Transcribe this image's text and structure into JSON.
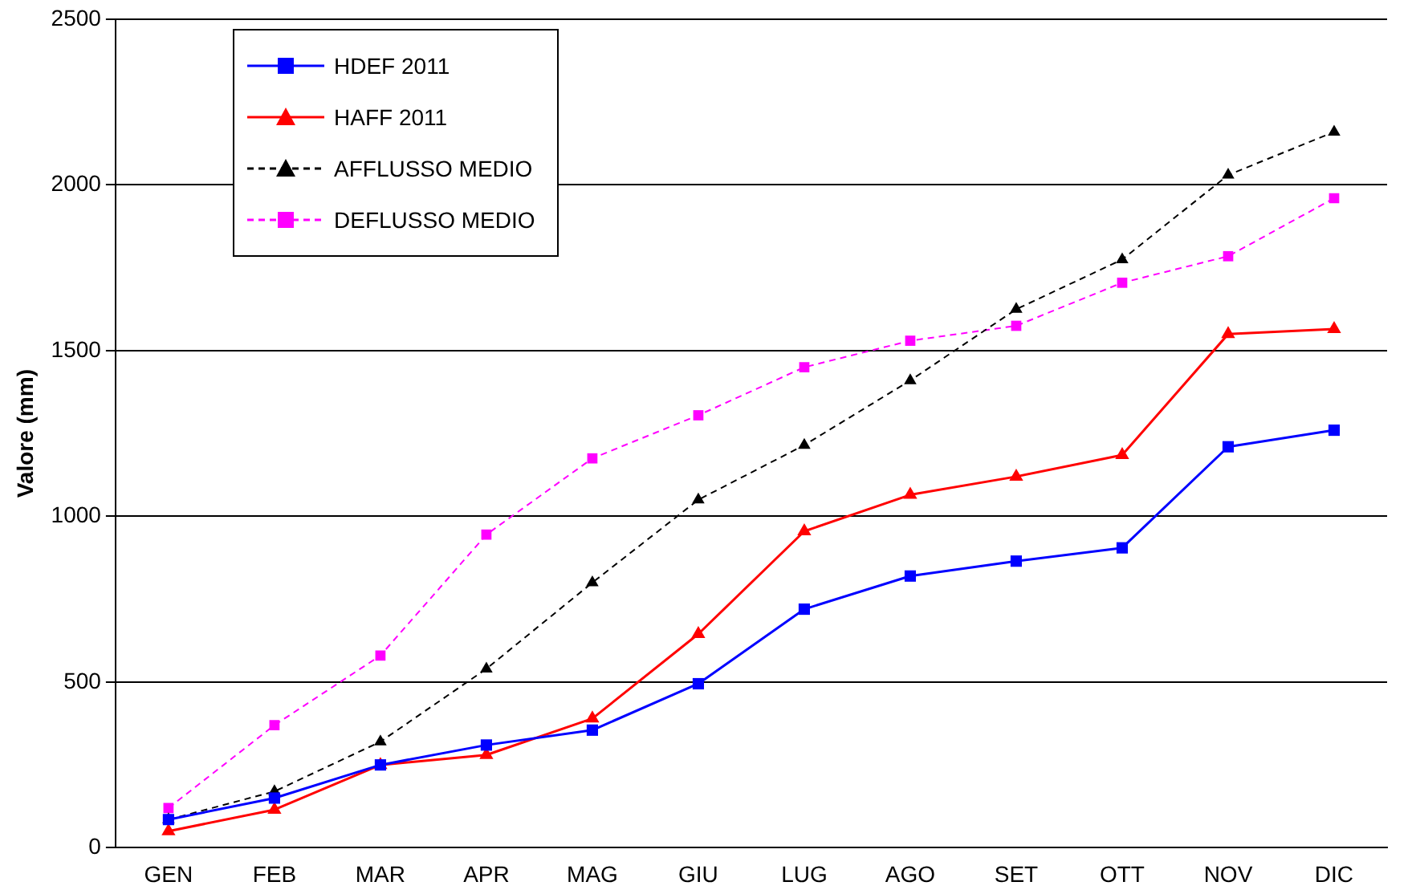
{
  "chart_data": {
    "type": "line",
    "ylabel": "Valore (mm)",
    "categories": [
      "GEN",
      "FEB",
      "MAR",
      "APR",
      "MAG",
      "GIU",
      "LUG",
      "AGO",
      "SET",
      "OTT",
      "NOV",
      "DIC"
    ],
    "series": [
      {
        "name": "HDEF 2011",
        "color": "#0000ff",
        "marker": "square",
        "line_style": "solid",
        "values": [
          85,
          150,
          250,
          310,
          355,
          495,
          720,
          820,
          865,
          905,
          1210,
          1260
        ]
      },
      {
        "name": "HAFF 2011",
        "color": "#ff0000",
        "marker": "triangle",
        "line_style": "solid",
        "values": [
          50,
          115,
          250,
          280,
          390,
          645,
          955,
          1065,
          1120,
          1185,
          1550,
          1565
        ]
      },
      {
        "name": "AFFLUSSO MEDIO",
        "color": "#000000",
        "marker": "triangle",
        "line_style": "dashed",
        "values": [
          85,
          170,
          320,
          540,
          800,
          1050,
          1215,
          1410,
          1625,
          1775,
          2030,
          2160
        ]
      },
      {
        "name": "DEFLUSSO MEDIO",
        "color": "#ff00ff",
        "marker": "square",
        "line_style": "dashed",
        "values": [
          120,
          370,
          580,
          945,
          1175,
          1305,
          1450,
          1530,
          1575,
          1705,
          1785,
          1960
        ]
      }
    ],
    "ylim": [
      0,
      2500
    ],
    "yticks": [
      0,
      500,
      1000,
      1500,
      2000,
      2500
    ],
    "grid": "y",
    "legend": "top left"
  }
}
